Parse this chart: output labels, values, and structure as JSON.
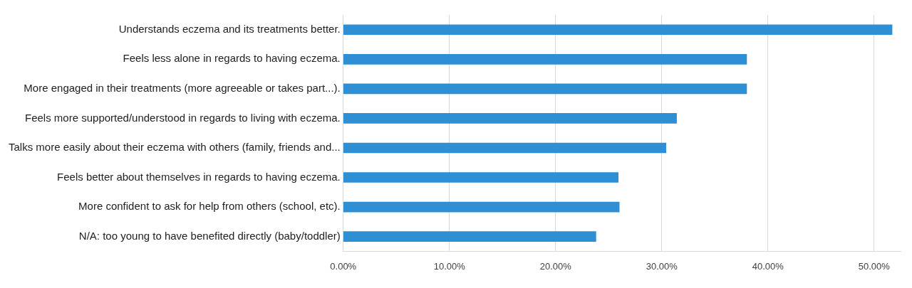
{
  "chart_data": {
    "type": "bar",
    "orientation": "horizontal",
    "categories": [
      "Understands eczema and its treatments better.",
      "Feels less alone in regards to having eczema.",
      "More engaged in their treatments (more agreeable or takes part...).",
      "Feels more supported/understood in regards to living with eczema.",
      "Talks more easily about their eczema with others (family, friends and...",
      "Feels better about themselves in regards to having eczema.",
      "More confident to ask for help from others (school, etc).",
      "N/A: too young to have benefited directly (baby/toddler)"
    ],
    "values": [
      51.7,
      38.0,
      38.0,
      31.4,
      30.4,
      25.9,
      26.0,
      23.8
    ],
    "color": "#2e8fd4",
    "xlim": [
      0,
      52.5
    ],
    "xticks": [
      {
        "value": 0,
        "label": "0.00%"
      },
      {
        "value": 10,
        "label": "10.00%"
      },
      {
        "value": 20,
        "label": "20.00%"
      },
      {
        "value": 30,
        "label": "30.00%"
      },
      {
        "value": 40,
        "label": "40.00%"
      },
      {
        "value": 50,
        "label": "50.00%"
      }
    ],
    "grid": "x",
    "legend": false
  }
}
